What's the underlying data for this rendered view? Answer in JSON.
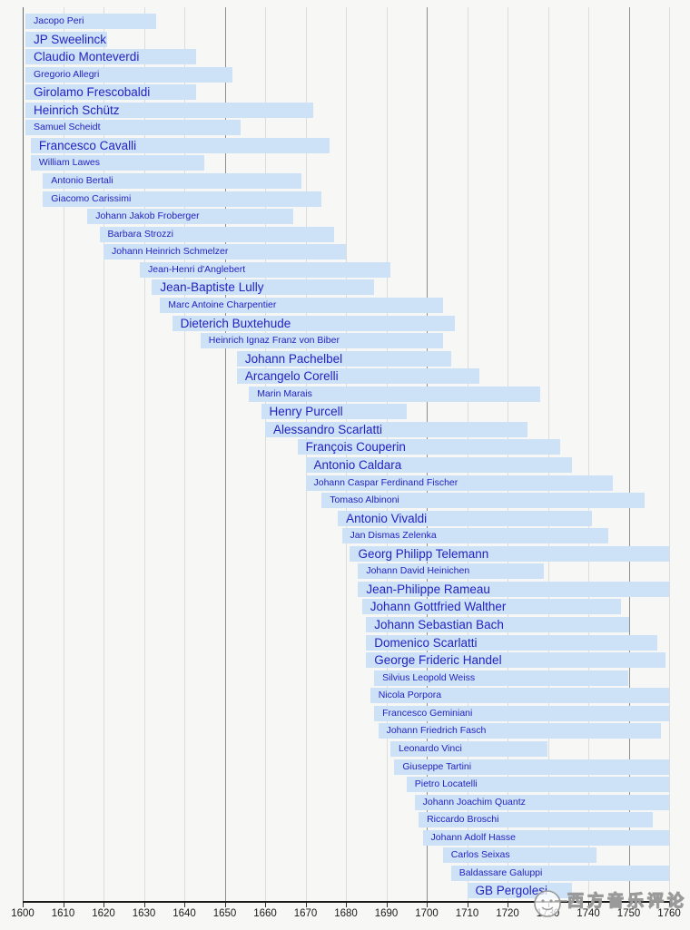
{
  "chart_data": {
    "type": "bar",
    "subtype": "timeline-lifespans",
    "title": "",
    "xlabel": "",
    "ylabel": "",
    "x_axis": {
      "min": 1600,
      "max": 1760,
      "tick_step": 10,
      "tick_labels": [
        "1600",
        "1610",
        "1620",
        "1630",
        "1640",
        "1650",
        "1660",
        "1670",
        "1680",
        "1690",
        "1700",
        "1710",
        "1720",
        "1730",
        "1740",
        "1750",
        "1760"
      ],
      "major_gridlines": [
        1650,
        1700,
        1750
      ],
      "grid": true,
      "legend": "none"
    },
    "composers": [
      {
        "name": "Jacopo Peri",
        "start": 1600,
        "end": 1633,
        "size": "sm"
      },
      {
        "name": "JP Sweelinck",
        "start": 1600,
        "end": 1621,
        "size": "lg"
      },
      {
        "name": "Claudio Monteverdi",
        "start": 1600,
        "end": 1643,
        "size": "lg"
      },
      {
        "name": "Gregorio Allegri",
        "start": 1600,
        "end": 1652,
        "size": "sm"
      },
      {
        "name": "Girolamo Frescobaldi",
        "start": 1600,
        "end": 1643,
        "size": "lg"
      },
      {
        "name": "Heinrich Schütz",
        "start": 1600,
        "end": 1672,
        "size": "lg"
      },
      {
        "name": "Samuel Scheidt",
        "start": 1600,
        "end": 1654,
        "size": "sm"
      },
      {
        "name": "Francesco Cavalli",
        "start": 1602,
        "end": 1676,
        "size": "lg"
      },
      {
        "name": "William Lawes",
        "start": 1602,
        "end": 1645,
        "size": "sm"
      },
      {
        "name": "Antonio Bertali",
        "start": 1605,
        "end": 1669,
        "size": "sm"
      },
      {
        "name": "Giacomo Carissimi",
        "start": 1605,
        "end": 1674,
        "size": "sm"
      },
      {
        "name": "Johann Jakob Froberger",
        "start": 1616,
        "end": 1667,
        "size": "sm"
      },
      {
        "name": "Barbara Strozzi",
        "start": 1619,
        "end": 1677,
        "size": "sm"
      },
      {
        "name": "Johann Heinrich Schmelzer",
        "start": 1620,
        "end": 1680,
        "size": "sm"
      },
      {
        "name": "Jean-Henri d'Anglebert",
        "start": 1629,
        "end": 1691,
        "size": "sm"
      },
      {
        "name": "Jean-Baptiste Lully",
        "start": 1632,
        "end": 1687,
        "size": "lg"
      },
      {
        "name": "Marc Antoine Charpentier",
        "start": 1634,
        "end": 1704,
        "size": "sm"
      },
      {
        "name": "Dieterich Buxtehude",
        "start": 1637,
        "end": 1707,
        "size": "lg"
      },
      {
        "name": "Heinrich Ignaz Franz von Biber",
        "start": 1644,
        "end": 1704,
        "size": "sm"
      },
      {
        "name": "Johann Pachelbel",
        "start": 1653,
        "end": 1706,
        "size": "lg"
      },
      {
        "name": "Arcangelo Corelli",
        "start": 1653,
        "end": 1713,
        "size": "lg"
      },
      {
        "name": "Marin Marais",
        "start": 1656,
        "end": 1728,
        "size": "sm"
      },
      {
        "name": "Henry Purcell",
        "start": 1659,
        "end": 1695,
        "size": "lg"
      },
      {
        "name": "Alessandro Scarlatti",
        "start": 1660,
        "end": 1725,
        "size": "lg"
      },
      {
        "name": "François Couperin",
        "start": 1668,
        "end": 1733,
        "size": "lg"
      },
      {
        "name": "Antonio Caldara",
        "start": 1670,
        "end": 1736,
        "size": "lg"
      },
      {
        "name": "Johann Caspar Ferdinand Fischer",
        "start": 1670,
        "end": 1746,
        "size": "sm"
      },
      {
        "name": "Tomaso Albinoni",
        "start": 1674,
        "end": 1754,
        "size": "sm"
      },
      {
        "name": "Antonio Vivaldi",
        "start": 1678,
        "end": 1741,
        "size": "lg"
      },
      {
        "name": "Jan Dismas Zelenka",
        "start": 1679,
        "end": 1745,
        "size": "sm"
      },
      {
        "name": "Georg Philipp Telemann",
        "start": 1681,
        "end": 1760,
        "size": "lg"
      },
      {
        "name": "Johann David Heinichen",
        "start": 1683,
        "end": 1729,
        "size": "sm"
      },
      {
        "name": "Jean-Philippe Rameau",
        "start": 1683,
        "end": 1760,
        "size": "lg"
      },
      {
        "name": "Johann Gottfried Walther",
        "start": 1684,
        "end": 1748,
        "size": "lg"
      },
      {
        "name": "Johann Sebastian Bach",
        "start": 1685,
        "end": 1750,
        "size": "lg"
      },
      {
        "name": "Domenico Scarlatti",
        "start": 1685,
        "end": 1757,
        "size": "lg"
      },
      {
        "name": "George Frideric Handel",
        "start": 1685,
        "end": 1759,
        "size": "lg"
      },
      {
        "name": "Silvius Leopold Weiss",
        "start": 1687,
        "end": 1750,
        "size": "sm"
      },
      {
        "name": "Nicola Porpora",
        "start": 1686,
        "end": 1760,
        "size": "sm"
      },
      {
        "name": "Francesco Geminiani",
        "start": 1687,
        "end": 1760,
        "size": "sm"
      },
      {
        "name": "Johann Friedrich Fasch",
        "start": 1688,
        "end": 1758,
        "size": "sm"
      },
      {
        "name": "Leonardo Vinci",
        "start": 1691,
        "end": 1730,
        "size": "sm"
      },
      {
        "name": "Giuseppe Tartini",
        "start": 1692,
        "end": 1760,
        "size": "sm"
      },
      {
        "name": "Pietro Locatelli",
        "start": 1695,
        "end": 1760,
        "size": "sm"
      },
      {
        "name": "Johann Joachim Quantz",
        "start": 1697,
        "end": 1760,
        "size": "sm"
      },
      {
        "name": "Riccardo Broschi",
        "start": 1698,
        "end": 1756,
        "size": "sm"
      },
      {
        "name": "Johann Adolf Hasse",
        "start": 1699,
        "end": 1760,
        "size": "sm"
      },
      {
        "name": "Carlos Seixas",
        "start": 1704,
        "end": 1742,
        "size": "sm"
      },
      {
        "name": "Baldassare Galuppi",
        "start": 1706,
        "end": 1760,
        "size": "sm"
      },
      {
        "name": "GB Pergolesi",
        "start": 1710,
        "end": 1736,
        "size": "lg"
      }
    ],
    "colors": {
      "background": "#f7f7f5",
      "bar": "#cde1f7",
      "bar_text": "#2323c0",
      "gridline": "#dcdcdc",
      "gridline_major": "#8f8f8f",
      "axis": "#1a1a1a"
    }
  },
  "watermark": {
    "text": "西方音乐评论",
    "logo": "circular-account-logo"
  }
}
